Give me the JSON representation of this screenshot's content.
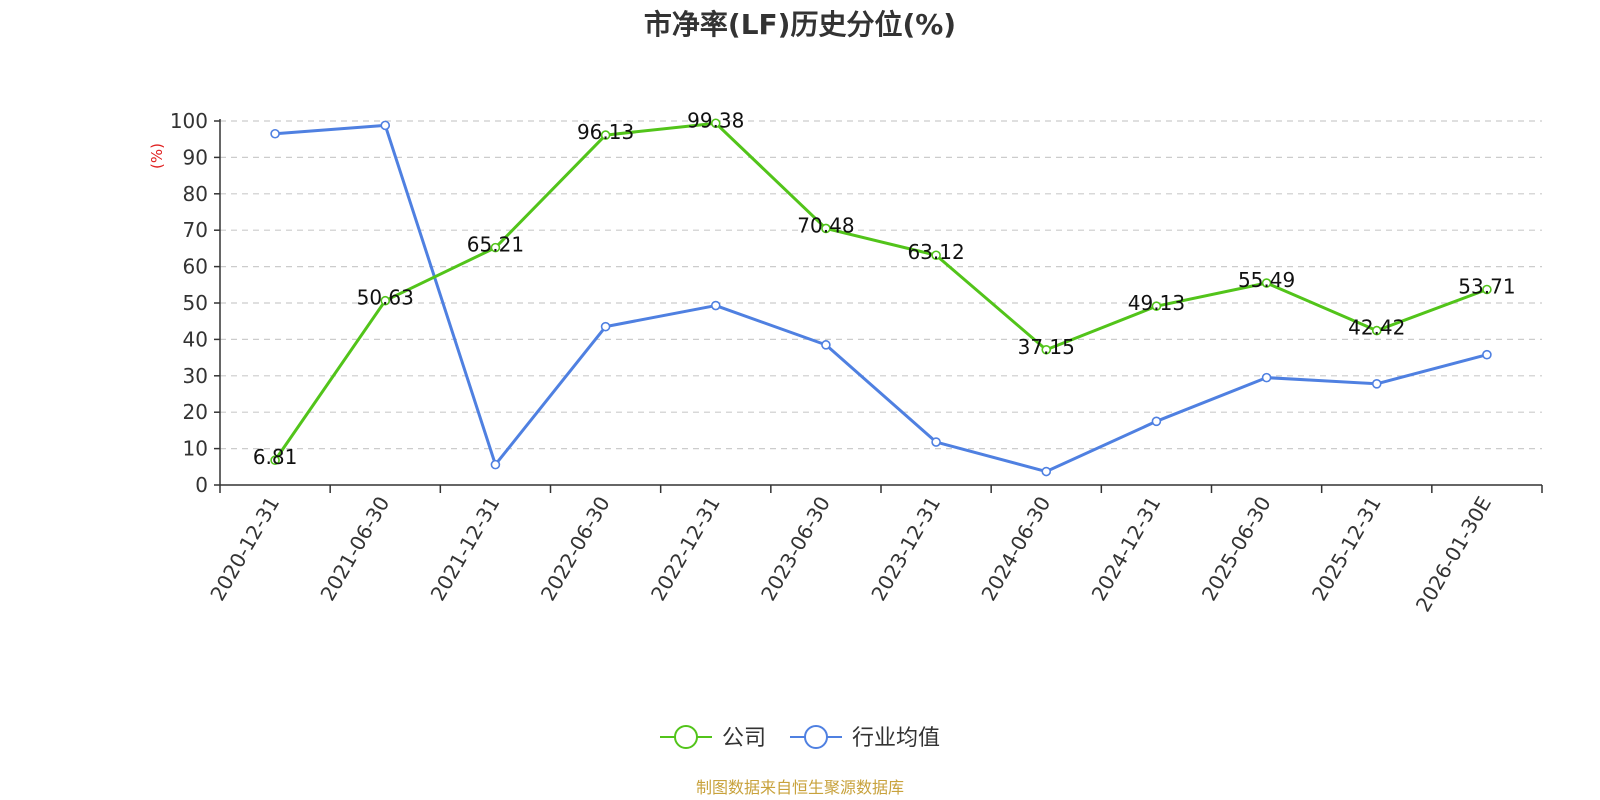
{
  "colors": {
    "company": "#52c41a",
    "industry": "#4f80e1",
    "axis": "#333333",
    "grid": "#cccccc",
    "ylabel": "#e02020",
    "source": "#c8a23c"
  },
  "chart_data": {
    "type": "line",
    "title": "市净率(LF)历史分位(%)",
    "xlabel": "",
    "ylabel": "(%)",
    "ylim": [
      0,
      100
    ],
    "yticks": [
      0,
      10,
      20,
      30,
      40,
      50,
      60,
      70,
      80,
      90,
      100
    ],
    "grid": true,
    "legend_position": "bottom-center",
    "categories": [
      "2020-12-31",
      "2021-06-30",
      "2021-12-31",
      "2022-06-30",
      "2022-12-31",
      "2023-06-30",
      "2023-12-31",
      "2024-06-30",
      "2024-12-31",
      "2025-06-30",
      "2025-12-31",
      "2026-01-30E"
    ],
    "series": [
      {
        "name": "公司",
        "color": "#52c41a",
        "values": [
          6.81,
          50.63,
          65.21,
          96.13,
          99.38,
          70.48,
          63.12,
          37.15,
          49.13,
          55.49,
          42.42,
          53.71
        ],
        "data_labels": [
          "6.81",
          "50.63",
          "65.21",
          "96.13",
          "99.38",
          "70.48",
          "63.12",
          "37.15",
          "49.13",
          "55.49",
          "42.42",
          "53.71"
        ]
      },
      {
        "name": "行业均值",
        "color": "#4f80e1",
        "values": [
          96.5,
          98.8,
          5.6,
          43.5,
          49.3,
          38.5,
          11.8,
          3.7,
          17.5,
          29.5,
          27.8,
          35.8
        ]
      }
    ]
  },
  "source": "制图数据来自恒生聚源数据库"
}
